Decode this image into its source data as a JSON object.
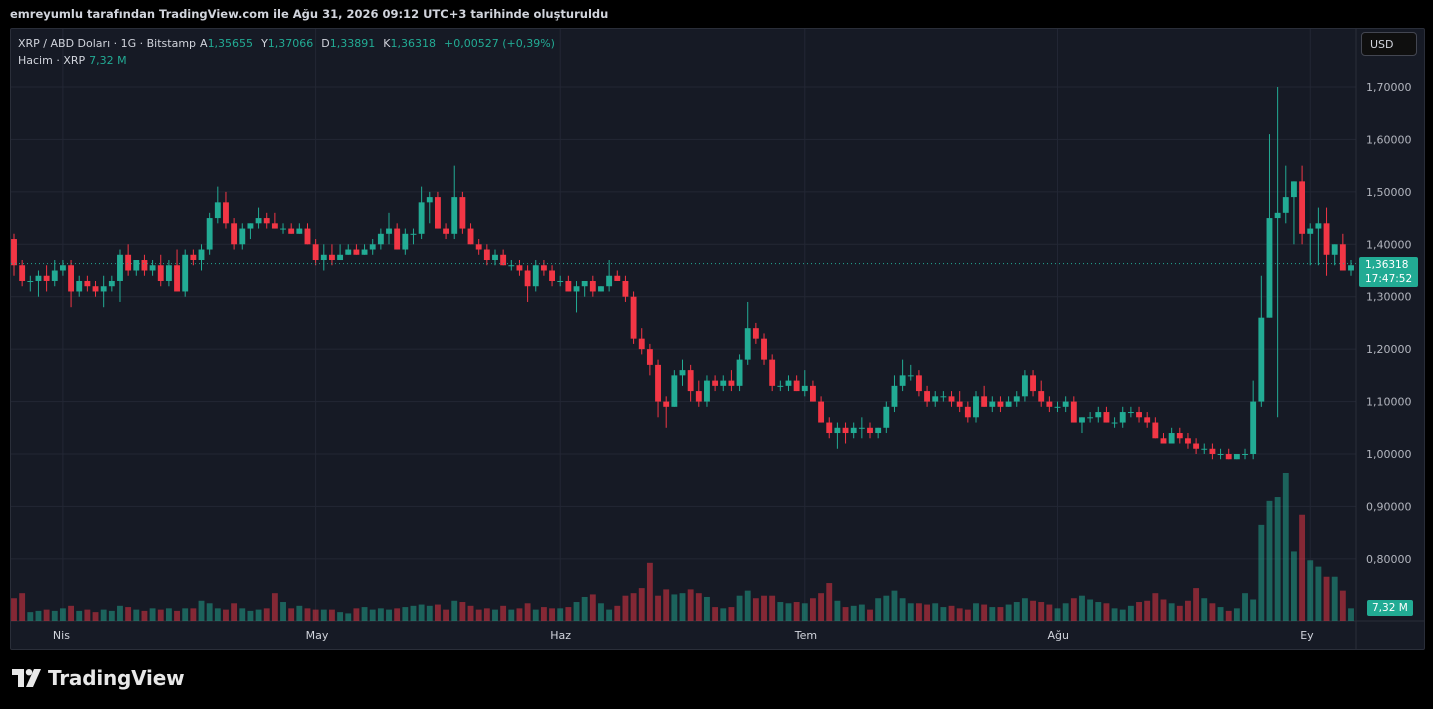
{
  "header": {
    "text": "emreyumlu tarafından TradingView.com ile Ağu 31, 2026 09:12 UTC+3 tarihinde oluşturuldu"
  },
  "legend": {
    "symbol": "XRP / ABD Doları · 1G · Bitstamp",
    "open_label": "A",
    "open": "1,35655",
    "high_label": "Y",
    "high": "1,37066",
    "low_label": "D",
    "low": "1,33891",
    "close_label": "K",
    "close": "1,36318",
    "change": "+0,00527 (+0,39%)",
    "volume_label": "Hacim · XRP",
    "volume": "7,32 M"
  },
  "currency_button": "USD",
  "current_price": {
    "value": "1,36318",
    "countdown": "17:47:52"
  },
  "footer": {
    "brand": "TradingView"
  },
  "colors": {
    "up": "#22ab94",
    "down": "#f23645",
    "up_volume": "#22ab94",
    "down_volume": "#f23645",
    "background": "#161a25",
    "grid": "#232734"
  },
  "chart_data": {
    "type": "candlestick",
    "title": "",
    "y_axis": {
      "ticks": [
        "1,70000",
        "1,60000",
        "1,50000",
        "1,40000",
        "1,30000",
        "1,20000",
        "1,10000",
        "1,00000",
        "0,90000",
        "0,80000"
      ],
      "tick_values": [
        1.7,
        1.6,
        1.5,
        1.4,
        1.3,
        1.2,
        1.1,
        1.0,
        0.9,
        0.8
      ],
      "range": [
        0.7,
        1.73
      ]
    },
    "x_axis": {
      "labels": [
        "Nis",
        "May",
        "Haz",
        "Tem",
        "Ağu",
        "Ey"
      ],
      "label_bar_index": [
        6,
        37,
        67,
        97,
        128,
        159
      ]
    },
    "grid": true,
    "current_price_line": 1.36318,
    "volume_series_name": "Hacim · XRP",
    "candles": [
      [
        1.41,
        1.42,
        1.34,
        1.36,
        18
      ],
      [
        1.36,
        1.37,
        1.32,
        1.33,
        22
      ],
      [
        1.33,
        1.34,
        1.31,
        1.33,
        7
      ],
      [
        1.33,
        1.35,
        1.3,
        1.34,
        8
      ],
      [
        1.34,
        1.36,
        1.31,
        1.33,
        9
      ],
      [
        1.33,
        1.37,
        1.32,
        1.35,
        8
      ],
      [
        1.35,
        1.37,
        1.34,
        1.36,
        10
      ],
      [
        1.36,
        1.37,
        1.28,
        1.31,
        12
      ],
      [
        1.31,
        1.34,
        1.3,
        1.33,
        8
      ],
      [
        1.33,
        1.34,
        1.31,
        1.32,
        9
      ],
      [
        1.32,
        1.33,
        1.3,
        1.31,
        7
      ],
      [
        1.31,
        1.34,
        1.28,
        1.32,
        9
      ],
      [
        1.32,
        1.34,
        1.31,
        1.33,
        8
      ],
      [
        1.33,
        1.39,
        1.29,
        1.38,
        12
      ],
      [
        1.38,
        1.4,
        1.34,
        1.35,
        11
      ],
      [
        1.35,
        1.37,
        1.34,
        1.37,
        9
      ],
      [
        1.37,
        1.38,
        1.34,
        1.35,
        8
      ],
      [
        1.35,
        1.37,
        1.34,
        1.36,
        10
      ],
      [
        1.36,
        1.38,
        1.32,
        1.33,
        9
      ],
      [
        1.33,
        1.37,
        1.32,
        1.36,
        10
      ],
      [
        1.36,
        1.39,
        1.31,
        1.31,
        8
      ],
      [
        1.31,
        1.39,
        1.3,
        1.38,
        10
      ],
      [
        1.38,
        1.39,
        1.36,
        1.37,
        10
      ],
      [
        1.37,
        1.4,
        1.35,
        1.39,
        16
      ],
      [
        1.39,
        1.46,
        1.38,
        1.45,
        14
      ],
      [
        1.45,
        1.51,
        1.44,
        1.48,
        10
      ],
      [
        1.48,
        1.5,
        1.43,
        1.44,
        9
      ],
      [
        1.44,
        1.45,
        1.39,
        1.4,
        14
      ],
      [
        1.4,
        1.44,
        1.39,
        1.43,
        10
      ],
      [
        1.43,
        1.44,
        1.41,
        1.44,
        8
      ],
      [
        1.44,
        1.47,
        1.43,
        1.45,
        9
      ],
      [
        1.45,
        1.46,
        1.43,
        1.44,
        10
      ],
      [
        1.44,
        1.46,
        1.43,
        1.43,
        22
      ],
      [
        1.43,
        1.44,
        1.42,
        1.43,
        15
      ],
      [
        1.43,
        1.44,
        1.42,
        1.42,
        10
      ],
      [
        1.42,
        1.44,
        1.42,
        1.43,
        12
      ],
      [
        1.43,
        1.44,
        1.4,
        1.4,
        10
      ],
      [
        1.4,
        1.41,
        1.36,
        1.37,
        9
      ],
      [
        1.37,
        1.4,
        1.35,
        1.38,
        9
      ],
      [
        1.38,
        1.4,
        1.36,
        1.37,
        9
      ],
      [
        1.37,
        1.4,
        1.37,
        1.38,
        7
      ],
      [
        1.38,
        1.4,
        1.38,
        1.39,
        6
      ],
      [
        1.39,
        1.4,
        1.38,
        1.38,
        10
      ],
      [
        1.38,
        1.4,
        1.38,
        1.39,
        11
      ],
      [
        1.39,
        1.41,
        1.38,
        1.4,
        9
      ],
      [
        1.4,
        1.43,
        1.39,
        1.42,
        10
      ],
      [
        1.42,
        1.46,
        1.4,
        1.43,
        9
      ],
      [
        1.43,
        1.44,
        1.39,
        1.39,
        10
      ],
      [
        1.39,
        1.43,
        1.38,
        1.42,
        11
      ],
      [
        1.42,
        1.43,
        1.4,
        1.42,
        12
      ],
      [
        1.42,
        1.51,
        1.41,
        1.48,
        13
      ],
      [
        1.48,
        1.5,
        1.44,
        1.49,
        12
      ],
      [
        1.49,
        1.5,
        1.43,
        1.43,
        13
      ],
      [
        1.43,
        1.44,
        1.41,
        1.42,
        9
      ],
      [
        1.42,
        1.55,
        1.41,
        1.49,
        16
      ],
      [
        1.49,
        1.5,
        1.42,
        1.43,
        15
      ],
      [
        1.43,
        1.44,
        1.4,
        1.4,
        12
      ],
      [
        1.4,
        1.41,
        1.38,
        1.39,
        9
      ],
      [
        1.39,
        1.4,
        1.36,
        1.37,
        10
      ],
      [
        1.37,
        1.39,
        1.36,
        1.38,
        9
      ],
      [
        1.38,
        1.39,
        1.36,
        1.36,
        12
      ],
      [
        1.36,
        1.37,
        1.35,
        1.36,
        9
      ],
      [
        1.36,
        1.37,
        1.34,
        1.35,
        10
      ],
      [
        1.35,
        1.36,
        1.29,
        1.32,
        14
      ],
      [
        1.32,
        1.37,
        1.31,
        1.36,
        9
      ],
      [
        1.36,
        1.37,
        1.34,
        1.35,
        11
      ],
      [
        1.35,
        1.36,
        1.32,
        1.33,
        10
      ],
      [
        1.33,
        1.34,
        1.32,
        1.33,
        10
      ],
      [
        1.33,
        1.34,
        1.31,
        1.31,
        11
      ],
      [
        1.31,
        1.33,
        1.27,
        1.32,
        15
      ],
      [
        1.32,
        1.33,
        1.3,
        1.33,
        19
      ],
      [
        1.33,
        1.34,
        1.3,
        1.31,
        21
      ],
      [
        1.31,
        1.32,
        1.31,
        1.32,
        14
      ],
      [
        1.32,
        1.37,
        1.31,
        1.34,
        9
      ],
      [
        1.34,
        1.35,
        1.33,
        1.33,
        12
      ],
      [
        1.33,
        1.34,
        1.29,
        1.3,
        20
      ],
      [
        1.3,
        1.31,
        1.21,
        1.22,
        22
      ],
      [
        1.22,
        1.24,
        1.19,
        1.2,
        26
      ],
      [
        1.2,
        1.21,
        1.15,
        1.17,
        46
      ],
      [
        1.17,
        1.18,
        1.07,
        1.1,
        20
      ],
      [
        1.1,
        1.11,
        1.05,
        1.09,
        25
      ],
      [
        1.09,
        1.16,
        1.09,
        1.15,
        21
      ],
      [
        1.15,
        1.18,
        1.13,
        1.16,
        22
      ],
      [
        1.16,
        1.17,
        1.1,
        1.12,
        25
      ],
      [
        1.12,
        1.14,
        1.09,
        1.1,
        22
      ],
      [
        1.1,
        1.15,
        1.09,
        1.14,
        19
      ],
      [
        1.14,
        1.15,
        1.12,
        1.13,
        11
      ],
      [
        1.13,
        1.15,
        1.12,
        1.14,
        10
      ],
      [
        1.14,
        1.16,
        1.12,
        1.13,
        11
      ],
      [
        1.13,
        1.19,
        1.12,
        1.18,
        20
      ],
      [
        1.18,
        1.29,
        1.17,
        1.24,
        24
      ],
      [
        1.24,
        1.25,
        1.21,
        1.22,
        18
      ],
      [
        1.22,
        1.23,
        1.17,
        1.18,
        20
      ],
      [
        1.18,
        1.19,
        1.12,
        1.13,
        20
      ],
      [
        1.13,
        1.14,
        1.12,
        1.13,
        15
      ],
      [
        1.13,
        1.15,
        1.12,
        1.14,
        14
      ],
      [
        1.14,
        1.15,
        1.12,
        1.12,
        15
      ],
      [
        1.12,
        1.16,
        1.11,
        1.13,
        14
      ],
      [
        1.13,
        1.14,
        1.1,
        1.1,
        18
      ],
      [
        1.1,
        1.11,
        1.06,
        1.06,
        22
      ],
      [
        1.06,
        1.07,
        1.03,
        1.04,
        30
      ],
      [
        1.04,
        1.06,
        1.01,
        1.05,
        16
      ],
      [
        1.05,
        1.06,
        1.02,
        1.04,
        11
      ],
      [
        1.04,
        1.06,
        1.03,
        1.05,
        12
      ],
      [
        1.05,
        1.07,
        1.03,
        1.05,
        13
      ],
      [
        1.05,
        1.06,
        1.03,
        1.04,
        9
      ],
      [
        1.04,
        1.05,
        1.03,
        1.05,
        18
      ],
      [
        1.05,
        1.1,
        1.04,
        1.09,
        20
      ],
      [
        1.09,
        1.15,
        1.08,
        1.13,
        24
      ],
      [
        1.13,
        1.18,
        1.12,
        1.15,
        18
      ],
      [
        1.15,
        1.17,
        1.14,
        1.15,
        14
      ],
      [
        1.15,
        1.16,
        1.11,
        1.12,
        14
      ],
      [
        1.12,
        1.13,
        1.09,
        1.1,
        13
      ],
      [
        1.1,
        1.12,
        1.09,
        1.11,
        14
      ],
      [
        1.11,
        1.12,
        1.1,
        1.11,
        11
      ],
      [
        1.11,
        1.12,
        1.09,
        1.1,
        12
      ],
      [
        1.1,
        1.12,
        1.08,
        1.09,
        10
      ],
      [
        1.09,
        1.1,
        1.06,
        1.07,
        9
      ],
      [
        1.07,
        1.12,
        1.06,
        1.11,
        14
      ],
      [
        1.11,
        1.13,
        1.09,
        1.09,
        13
      ],
      [
        1.09,
        1.11,
        1.08,
        1.1,
        11
      ],
      [
        1.1,
        1.11,
        1.08,
        1.09,
        11
      ],
      [
        1.09,
        1.11,
        1.09,
        1.1,
        13
      ],
      [
        1.1,
        1.12,
        1.09,
        1.11,
        15
      ],
      [
        1.11,
        1.16,
        1.1,
        1.15,
        18
      ],
      [
        1.15,
        1.16,
        1.11,
        1.12,
        16
      ],
      [
        1.12,
        1.14,
        1.09,
        1.1,
        15
      ],
      [
        1.1,
        1.11,
        1.08,
        1.09,
        13
      ],
      [
        1.09,
        1.1,
        1.08,
        1.09,
        10
      ],
      [
        1.09,
        1.11,
        1.08,
        1.1,
        14
      ],
      [
        1.1,
        1.11,
        1.06,
        1.06,
        18
      ],
      [
        1.06,
        1.07,
        1.04,
        1.07,
        20
      ],
      [
        1.07,
        1.08,
        1.06,
        1.07,
        17
      ],
      [
        1.07,
        1.09,
        1.06,
        1.08,
        15
      ],
      [
        1.08,
        1.09,
        1.06,
        1.06,
        14
      ],
      [
        1.06,
        1.07,
        1.05,
        1.06,
        10
      ],
      [
        1.06,
        1.09,
        1.05,
        1.08,
        9
      ],
      [
        1.08,
        1.09,
        1.07,
        1.08,
        12
      ],
      [
        1.08,
        1.09,
        1.06,
        1.07,
        15
      ],
      [
        1.07,
        1.08,
        1.05,
        1.06,
        16
      ],
      [
        1.06,
        1.07,
        1.03,
        1.03,
        22
      ],
      [
        1.03,
        1.04,
        1.02,
        1.02,
        17
      ],
      [
        1.02,
        1.05,
        1.02,
        1.04,
        14
      ],
      [
        1.04,
        1.05,
        1.02,
        1.03,
        12
      ],
      [
        1.03,
        1.04,
        1.01,
        1.02,
        16
      ],
      [
        1.02,
        1.03,
        1.0,
        1.01,
        26
      ],
      [
        1.01,
        1.02,
        1.0,
        1.01,
        18
      ],
      [
        1.01,
        1.02,
        0.99,
        1.0,
        14
      ],
      [
        1.0,
        1.01,
        0.99,
        1.0,
        11
      ],
      [
        1.0,
        1.01,
        0.99,
        0.99,
        8
      ],
      [
        0.99,
        1.0,
        0.99,
        1.0,
        10
      ],
      [
        1.0,
        1.01,
        0.99,
        1.0,
        22
      ],
      [
        1.0,
        1.14,
        0.99,
        1.1,
        17
      ],
      [
        1.1,
        1.34,
        1.09,
        1.26,
        76
      ],
      [
        1.26,
        1.61,
        1.26,
        1.45,
        95
      ],
      [
        1.45,
        1.7,
        1.07,
        1.46,
        98
      ],
      [
        1.46,
        1.55,
        1.44,
        1.49,
        117
      ],
      [
        1.49,
        1.52,
        1.4,
        1.52,
        55
      ],
      [
        1.52,
        1.55,
        1.4,
        1.42,
        84
      ],
      [
        1.42,
        1.44,
        1.36,
        1.43,
        48
      ],
      [
        1.43,
        1.47,
        1.36,
        1.44,
        43
      ],
      [
        1.44,
        1.47,
        1.34,
        1.38,
        35
      ],
      [
        1.38,
        1.4,
        1.36,
        1.4,
        35
      ],
      [
        1.4,
        1.42,
        1.35,
        1.35,
        24
      ],
      [
        1.35,
        1.37,
        1.34,
        1.36,
        10
      ]
    ]
  }
}
